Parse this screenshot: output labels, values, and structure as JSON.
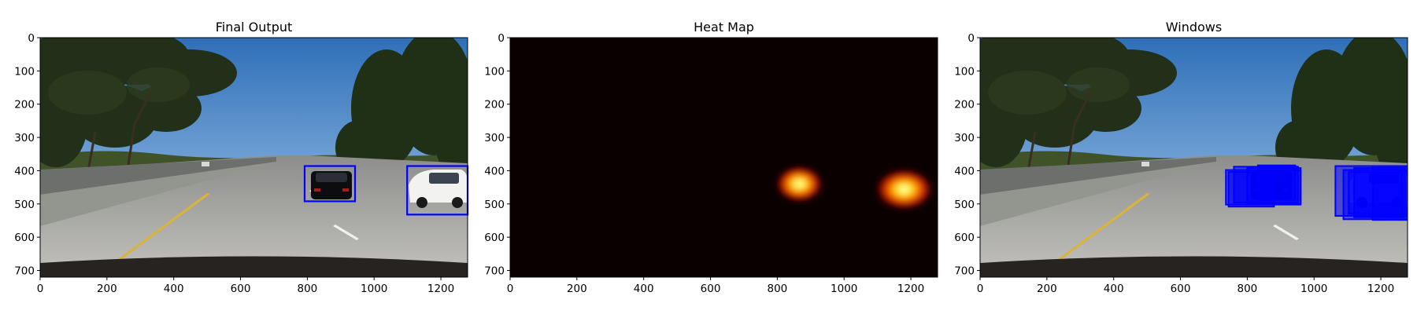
{
  "figure": {
    "background": "#ffffff"
  },
  "chart_data": [
    {
      "type": "image",
      "title": "Final Output",
      "xlim": [
        0,
        1280
      ],
      "ylim": [
        720,
        0
      ],
      "x_ticks": [
        "0",
        "200",
        "400",
        "600",
        "800",
        "1000",
        "1200"
      ],
      "y_ticks": [
        "0",
        "100",
        "200",
        "300",
        "400",
        "500",
        "600",
        "700"
      ],
      "image": "road scene with cars",
      "box_color": "#0000ff",
      "boxes": [
        {
          "x0": 792,
          "y0": 386,
          "x1": 943,
          "y1": 492
        },
        {
          "x0": 1099,
          "y0": 386,
          "x1": 1280,
          "y1": 532
        }
      ]
    },
    {
      "type": "heatmap",
      "title": "Heat Map",
      "colormap": "hot",
      "xlim": [
        0,
        1280
      ],
      "ylim": [
        720,
        0
      ],
      "x_ticks": [
        "0",
        "200",
        "400",
        "600",
        "800",
        "1000",
        "1200"
      ],
      "y_ticks": [
        "0",
        "100",
        "200",
        "300",
        "400",
        "500",
        "600",
        "700"
      ],
      "background_color": "#0b0000",
      "hotspots": [
        {
          "cx": 866,
          "cy": 440,
          "rx": 72,
          "ry": 55
        },
        {
          "cx": 1180,
          "cy": 456,
          "rx": 88,
          "ry": 62
        }
      ]
    },
    {
      "type": "image",
      "title": "Windows",
      "xlim": [
        0,
        1280
      ],
      "ylim": [
        720,
        0
      ],
      "x_ticks": [
        "0",
        "200",
        "400",
        "600",
        "800",
        "1000",
        "1200"
      ],
      "y_ticks": [
        "0",
        "100",
        "200",
        "300",
        "400",
        "500",
        "600",
        "700"
      ],
      "image": "road scene with cars",
      "box_color": "#0000ff",
      "windows": [
        {
          "x0": 736,
          "y0": 398,
          "x1": 960,
          "y1": 502
        },
        {
          "x0": 760,
          "y0": 388,
          "x1": 952,
          "y1": 496
        },
        {
          "x0": 800,
          "y0": 392,
          "x1": 960,
          "y1": 500
        },
        {
          "x0": 832,
          "y0": 384,
          "x1": 944,
          "y1": 488
        },
        {
          "x0": 744,
          "y0": 404,
          "x1": 880,
          "y1": 508
        },
        {
          "x0": 1064,
          "y0": 386,
          "x1": 1280,
          "y1": 536
        },
        {
          "x0": 1088,
          "y0": 398,
          "x1": 1280,
          "y1": 546
        },
        {
          "x0": 1120,
          "y0": 392,
          "x1": 1272,
          "y1": 540
        },
        {
          "x0": 1104,
          "y0": 404,
          "x1": 1264,
          "y1": 530
        },
        {
          "x0": 1176,
          "y0": 386,
          "x1": 1280,
          "y1": 548
        }
      ]
    }
  ]
}
